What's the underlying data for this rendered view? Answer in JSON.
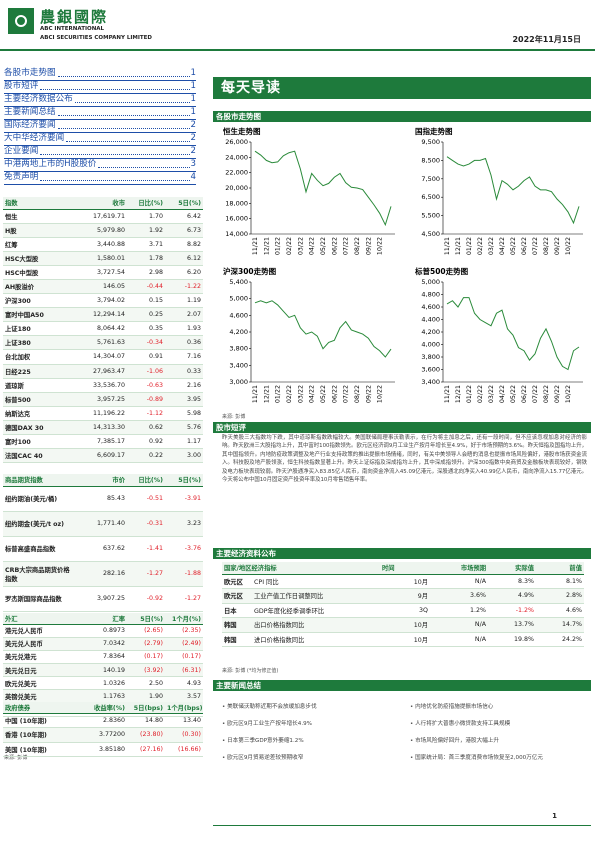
{
  "header": {
    "company_cn": "農銀國際",
    "company_en1": "ABC INTERNATIONAL",
    "company_en2": "ABCI SECURITIES COMPANY LIMITED",
    "date": "2022年11月15日"
  },
  "toc": [
    {
      "title": "各股市走势图",
      "page": "1"
    },
    {
      "title": "股市短评",
      "page": "1"
    },
    {
      "title": "主要经济数据公布",
      "page": "1"
    },
    {
      "title": "主要新闻总结",
      "page": "1"
    },
    {
      "title": "国际经济要闻",
      "page": "2"
    },
    {
      "title": "大中华经济要闻",
      "page": "2"
    },
    {
      "title": "企业要闻",
      "page": "2"
    },
    {
      "title": "中港两地上市的H股股价",
      "page": "3"
    },
    {
      "title": "免责声明",
      "page": "4"
    }
  ],
  "page_title": "每天导读",
  "charts_section": "各股市走势图",
  "chart_data": [
    {
      "type": "line",
      "title": "恒生走势图",
      "color": "#2a8a3a",
      "categories": [
        "11/21",
        null,
        "12/21",
        null,
        "01/22",
        null,
        "02/22",
        null,
        "03/22",
        null,
        "04/22",
        null,
        "05/22",
        null,
        "06/22",
        null,
        "07/22",
        null,
        "08/22",
        null,
        "09/22",
        null,
        "10/22",
        null,
        null
      ],
      "values": [
        24800,
        24300,
        23600,
        23300,
        23400,
        24200,
        24600,
        24800,
        22500,
        19500,
        21900,
        21000,
        20300,
        20600,
        21400,
        21900,
        20700,
        20100,
        20000,
        19800,
        18800,
        17800,
        16700,
        15200,
        17600
      ],
      "ylim": [
        14000,
        26000
      ],
      "yticks": [
        {
          "value": 14000,
          "label": "14,000"
        },
        {
          "value": 16000,
          "label": "16,000"
        },
        {
          "value": 18000,
          "label": "18,000"
        },
        {
          "value": 20000,
          "label": "20,000"
        },
        {
          "value": 22000,
          "label": "22,000"
        },
        {
          "value": 24000,
          "label": "24,000"
        },
        {
          "value": 26000,
          "label": "26,000"
        }
      ]
    },
    {
      "type": "line",
      "title": "国指走势图",
      "color": "#2a8a3a",
      "categories": [
        "11/21",
        null,
        "12/21",
        null,
        "01/22",
        null,
        "02/22",
        null,
        "03/22",
        null,
        "04/22",
        null,
        "05/22",
        null,
        "06/22",
        null,
        "07/22",
        null,
        "08/22",
        null,
        "09/22",
        null,
        "10/22",
        null,
        null
      ],
      "values": [
        8700,
        8500,
        8300,
        8200,
        8300,
        8500,
        8500,
        8600,
        7700,
        6400,
        7400,
        7200,
        6900,
        7100,
        7400,
        7600,
        7100,
        6900,
        6900,
        6800,
        6400,
        6100,
        5700,
        5100,
        6000
      ],
      "ylim": [
        4500,
        9500
      ],
      "yticks": [
        {
          "value": 4500,
          "label": "4,500"
        },
        {
          "value": 5500,
          "label": "5,500"
        },
        {
          "value": 6500,
          "label": "6,500"
        },
        {
          "value": 7500,
          "label": "7,500"
        },
        {
          "value": 8500,
          "label": "8,500"
        },
        {
          "value": 9500,
          "label": "9,500"
        }
      ]
    },
    {
      "type": "line",
      "title": "沪深300走势图",
      "color": "#2a8a3a",
      "categories": [
        "11/21",
        null,
        "12/21",
        null,
        "01/22",
        null,
        "02/22",
        null,
        "03/22",
        null,
        "04/22",
        null,
        "05/22",
        null,
        "06/22",
        null,
        "07/22",
        null,
        "08/22",
        null,
        "09/22",
        null,
        "10/22",
        null,
        null
      ],
      "values": [
        4900,
        4950,
        4900,
        4950,
        4850,
        4700,
        4550,
        4600,
        4300,
        4150,
        4200,
        4100,
        3800,
        3950,
        4000,
        4300,
        4450,
        4250,
        4200,
        4150,
        4050,
        3850,
        3750,
        3600,
        3790
      ],
      "ylim": [
        3000,
        5400
      ],
      "yticks": [
        {
          "value": 3000,
          "label": "3,000"
        },
        {
          "value": 3400,
          "label": "3,400"
        },
        {
          "value": 3800,
          "label": "3,800"
        },
        {
          "value": 4200,
          "label": "4,200"
        },
        {
          "value": 4600,
          "label": "4,600"
        },
        {
          "value": 5000,
          "label": "5,000"
        },
        {
          "value": 5400,
          "label": "5,400"
        }
      ]
    },
    {
      "type": "line",
      "title": "标普500走势图",
      "color": "#2a8a3a",
      "categories": [
        "11/21",
        null,
        "12/21",
        null,
        "01/22",
        null,
        "02/22",
        null,
        "03/22",
        null,
        "04/22",
        null,
        "05/22",
        null,
        "06/22",
        null,
        "07/22",
        null,
        "08/22",
        null,
        "09/22",
        null,
        "10/22",
        null,
        null
      ],
      "values": [
        4650,
        4700,
        4600,
        4750,
        4750,
        4500,
        4400,
        4350,
        4300,
        4500,
        4550,
        4250,
        4150,
        3950,
        3900,
        3750,
        3850,
        4100,
        4250,
        4050,
        3800,
        3650,
        3600,
        3900,
        3960
      ],
      "ylim": [
        3400,
        5000
      ],
      "yticks": [
        {
          "value": 3400,
          "label": "3,400"
        },
        {
          "value": 3600,
          "label": "3,600"
        },
        {
          "value": 3800,
          "label": "3,800"
        },
        {
          "value": 4000,
          "label": "4,000"
        },
        {
          "value": 4200,
          "label": "4,200"
        },
        {
          "value": 4400,
          "label": "4,400"
        },
        {
          "value": 4600,
          "label": "4,600"
        },
        {
          "value": 4800,
          "label": "4,800"
        },
        {
          "value": 5000,
          "label": "5,000"
        }
      ]
    }
  ],
  "chart_source": "来源: 彭博",
  "tables": {
    "indices": {
      "header": [
        "指数",
        "收市",
        "日比(%)",
        "5日(%)"
      ],
      "rows": [
        [
          "恒生",
          "17,619.71",
          "1.70",
          "6.42"
        ],
        [
          "H股",
          "5,979.80",
          "1.92",
          "6.73"
        ],
        [
          "红筹",
          "3,440.88",
          "3.71",
          "8.82"
        ],
        [
          "HSC大型股",
          "1,580.01",
          "1.78",
          "6.12"
        ],
        [
          "HSC中型股",
          "3,727.54",
          "2.98",
          "6.20"
        ],
        [
          "AH股溢价",
          "146.05",
          "-0.44",
          "-1.22"
        ],
        [
          "沪深300",
          "3,794.02",
          "0.15",
          "1.19"
        ],
        [
          "富时中国A50",
          "12,294.14",
          "0.25",
          "2.07"
        ],
        [
          "上证180",
          "8,064.42",
          "0.35",
          "1.93"
        ],
        [
          "上证380",
          "5,761.63",
          "-0.34",
          "0.36"
        ],
        [
          "台北加权",
          "14,304.07",
          "0.91",
          "7.16"
        ],
        [
          "日经225",
          "27,963.47",
          "-1.06",
          "0.33"
        ],
        [
          "道琼斯",
          "33,536.70",
          "-0.63",
          "2.16"
        ],
        [
          "标普500",
          "3,957.25",
          "-0.89",
          "3.95"
        ],
        [
          "纳斯达克",
          "11,196.22",
          "-1.12",
          "5.98"
        ],
        [
          "德国DAX 30",
          "14,313.30",
          "0.62",
          "5.76"
        ],
        [
          "富时100",
          "7,385.17",
          "0.92",
          "1.17"
        ],
        [
          "法国CAC 40",
          "6,609.17",
          "0.22",
          "3.00"
        ]
      ]
    },
    "commodities": {
      "header": [
        "商品期货指数",
        "市价",
        "日比(%)",
        "5日(%)"
      ],
      "rows": [
        [
          "纽约期油(美元/桶)",
          "85.43",
          "-0.51",
          "-3.91"
        ],
        [
          "纽约期金(美元/t oz)",
          "1,771.40",
          "-0.31",
          "3.23"
        ],
        [
          "标普高盛商品指数",
          "637.62",
          "-1.41",
          "-3.76"
        ],
        [
          "CRB大宗商品期货价格指数",
          "282.16",
          "-1.27",
          "-1.88"
        ],
        [
          "罗杰斯国际商品指数",
          "3,907.25",
          "-0.92",
          "-1.27"
        ]
      ]
    },
    "fx": {
      "header": [
        "外汇",
        "汇率",
        "5日(%)",
        "1个月(%)"
      ],
      "rows": [
        [
          "港元兑人民币",
          "0.8973",
          "(2.65)",
          "(2.35)"
        ],
        [
          "美元兑人民币",
          "7.0342",
          "(2.79)",
          "(2.49)"
        ],
        [
          "美元兑港元",
          "7.8364",
          "(0.17)",
          "(0.17)"
        ],
        [
          "美元兑日元",
          "140.19",
          "(3.92)",
          "(6.31)"
        ],
        [
          "欧元兑美元",
          "1.0326",
          "2.50",
          "4.93"
        ],
        [
          "英镑兑美元",
          "1.1763",
          "1.90",
          "3.57"
        ],
        [
          "澳元兑美元",
          "0.6701",
          "2.98",
          "6.52"
        ]
      ]
    },
    "bonds": {
      "header": [
        "政府债券",
        "收益率(%)",
        "5日(bps)",
        "1个月(bps)"
      ],
      "rows": [
        [
          "中国 (10年期)",
          "2.8360",
          "14.80",
          "13.40"
        ],
        [
          "香港 (10年期)",
          "3.77200",
          "(23.80)",
          "(0.30)"
        ],
        [
          "美国 (10年期)",
          "3.85180",
          "(27.16)",
          "(16.66)"
        ]
      ]
    },
    "source": "来源: 彭博"
  },
  "commentary": {
    "title": "股市短评",
    "text": "昨天美股三大指数均下跌，其中道琼斯指数跌幅较大。美国联储局理事沃勒表示，在行为将主加息之后，还有一段时间，但不应该忽视加息对经济的影响。昨天欧洲三大股指均上升，其中富时100指数领先。欧元区经济调9月工业生产按月年增长至4.9%，好于市场预期的3.6%。昨天恒指及国指均上升，其中国指领升。内地防疫政策调整及地产行业支持政策的推出提振市场情绪，同时，有关中美领导人会晤的消息也提振市场风险偏好，港股市场获资金流入。科技股及地产股领涨，恒生科技指数显著上升。昨天上证综指及深成指均上升，其中深成指领升。沪深300指数中央商贸及金融板块表现较好，钢铁及电力板块表现较弱。昨天沪股通净买入83.85亿人民币，南向资金净流入45.09亿港元，深股通北向净买入40.99亿人民币，南向净流入15.77亿港元。今天将公布中国10月固定资产投资年率及10月零售销售年率。"
  },
  "econ": {
    "title": "主要经济资料公布",
    "header": [
      "国家/地区经济指标",
      "时间",
      "市场预期",
      "实际值",
      "前值"
    ],
    "rows": [
      [
        "欧元区",
        "CPI 同比",
        "10月",
        "N/A",
        "8.3%",
        "8.1%"
      ],
      [
        "欧元区",
        "工业产值工作日调整同比",
        "9月",
        "3.6%",
        "4.9%",
        "2.8%"
      ],
      [
        "日本",
        "GDP年度化经季调季环比",
        "3Q",
        "1.2%",
        "-1.2%",
        "4.6%"
      ],
      [
        "韩国",
        "出口价格指数同比",
        "10月",
        "N/A",
        "13.7%",
        "14.7%"
      ],
      [
        "韩国",
        "进口价格指数同比",
        "10月",
        "N/A",
        "19.8%",
        "24.2%"
      ]
    ],
    "note": "来源: 彭博 (*均为修正值)"
  },
  "news": {
    "title": "主要新闻总结",
    "left": [
      "美联储沃勒称近期不会放缓加息步伐",
      "欧元区9月工业生产按年增长4.9%",
      "日本第三季GDP意外萎缩1.2%",
      "欧元区9月贸易逆差较预期收窄"
    ],
    "right": [
      "内地优化防疫措施提振市场信心",
      "人行将扩大普惠小微贷款支持工具规模",
      "市场风险偏好回升，港股大幅上升",
      "国家统计局：首三季度消费市场恢复至2,000万亿元"
    ]
  },
  "page_number": "1"
}
